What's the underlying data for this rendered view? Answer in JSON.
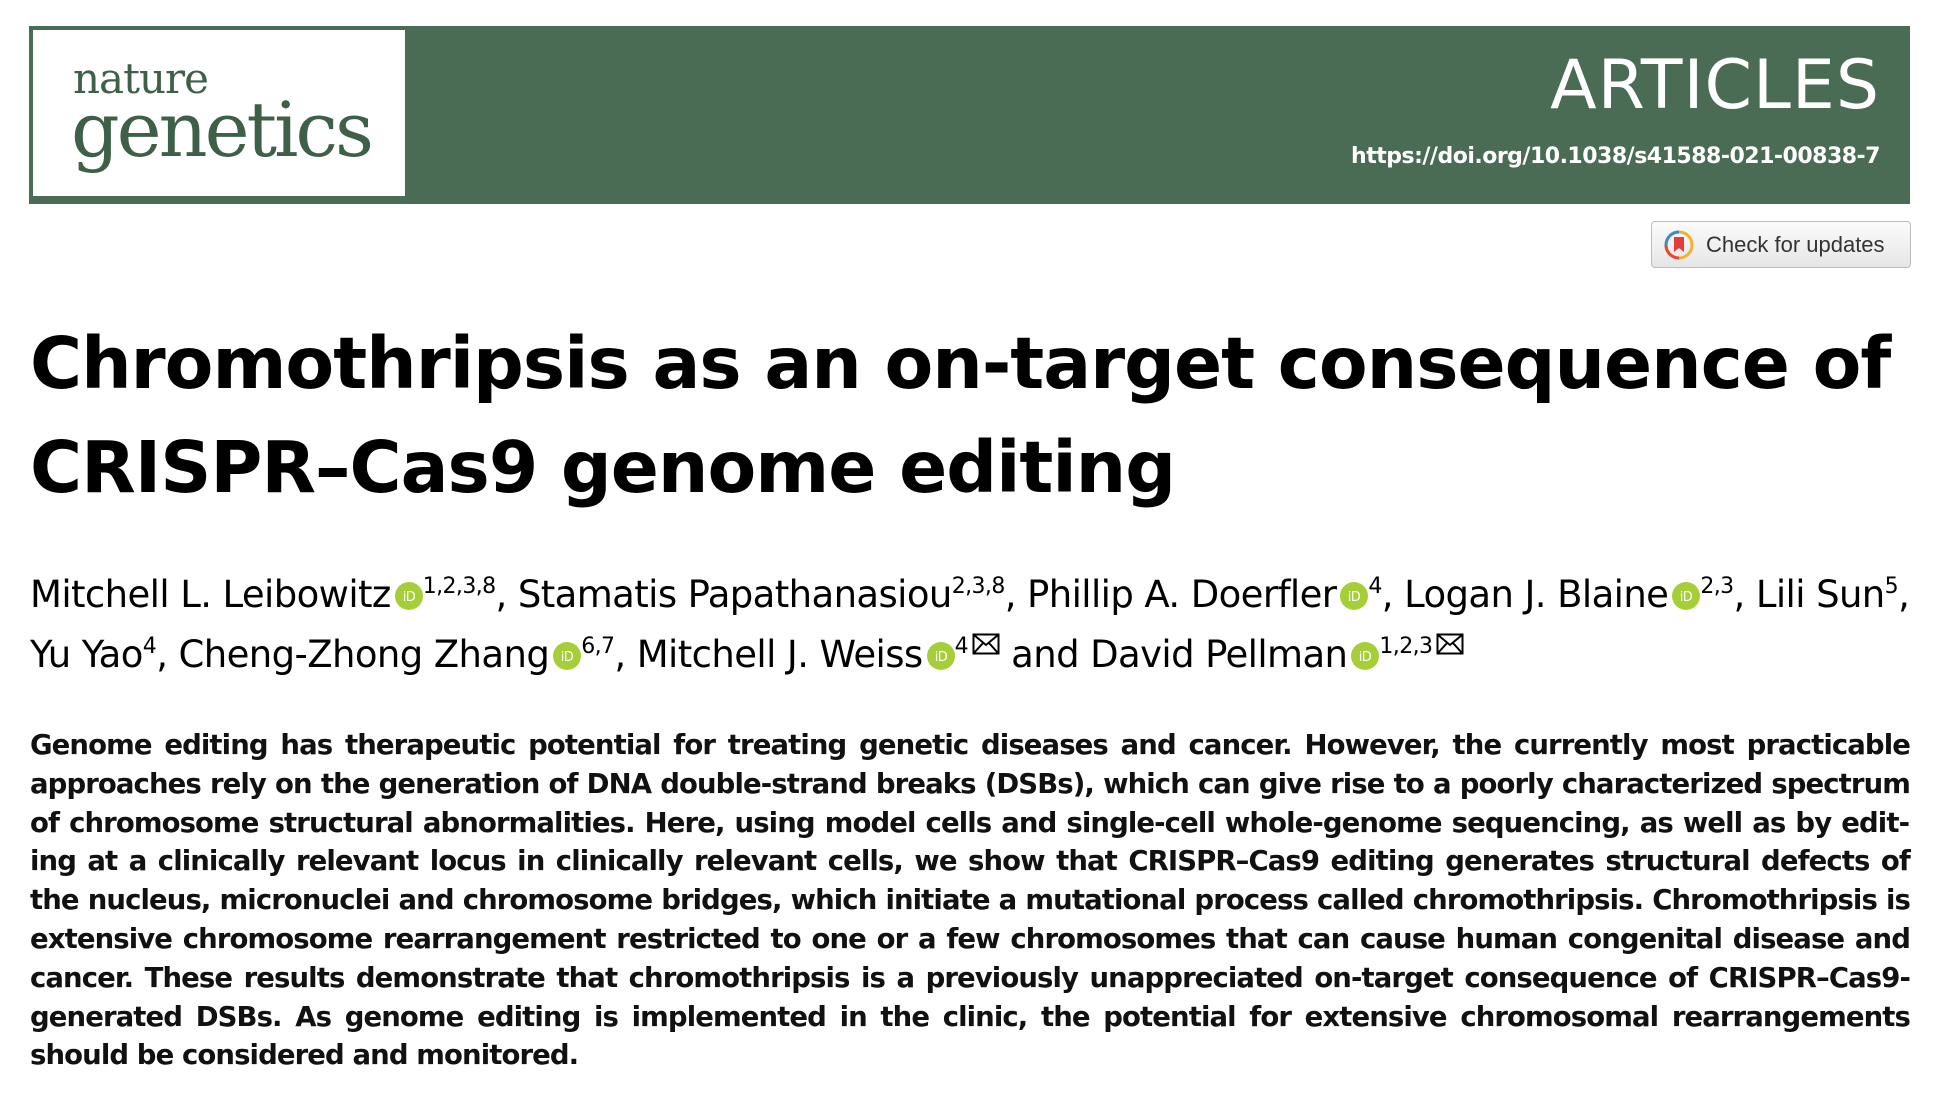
{
  "journal": {
    "name_line1": "nature",
    "name_line2": "genetics",
    "section": "ARTICLES",
    "doi": "https://doi.org/10.1038/s41588-021-00838-7",
    "brand_color": "#4a6b54"
  },
  "check_updates": {
    "label": "Check for updates",
    "icon": "crossmark-icon"
  },
  "article": {
    "title_line1": "Chromothripsis as an on-target consequence of",
    "title_line2": "CRISPR–Cas9 genome editing"
  },
  "authors": [
    {
      "name": "Mitchell L. Leibowitz",
      "orcid": true,
      "affiliations": "1,2,3,8",
      "corresponding": false,
      "sep": ", "
    },
    {
      "name": "Stamatis Papathanasiou",
      "orcid": false,
      "affiliations": "2,3,8",
      "corresponding": false,
      "sep": ", "
    },
    {
      "name": "Phillip A. Doerfler",
      "orcid": true,
      "affiliations": "4",
      "corresponding": false,
      "sep": ", "
    },
    {
      "name": "Logan J. Blaine",
      "orcid": true,
      "affiliations": "2,3",
      "corresponding": false,
      "sep": ", "
    },
    {
      "name": "Lili Sun",
      "orcid": false,
      "affiliations": "5",
      "corresponding": false,
      "sep": ", "
    },
    {
      "name": "Yu Yao",
      "orcid": false,
      "affiliations": "4",
      "corresponding": false,
      "sep": ", "
    },
    {
      "name": "Cheng-Zhong Zhang",
      "orcid": true,
      "affiliations": "6,7",
      "corresponding": false,
      "sep": ", "
    },
    {
      "name": "Mitchell J. Weiss",
      "orcid": true,
      "affiliations": "4",
      "corresponding": true,
      "sep": " and "
    },
    {
      "name": "David Pellman",
      "orcid": true,
      "affiliations": "1,2,3",
      "corresponding": true,
      "sep": ""
    }
  ],
  "abstract": "Genome editing has therapeutic potential for treating genetic diseases and cancer. However, the currently most practicable approaches rely on the generation of DNA double-strand breaks (DSBs), which can give rise to a poorly characterized spectrum of chromosome structural abnormalities. Here, using model cells and single-cell whole-genome sequencing, as well as by edit­ing at a clinically relevant locus in clinically relevant cells, we show that CRISPR–Cas9 editing generates structural defects of the nucleus, micronuclei and chromosome bridges, which initiate a mutational process called chromothripsis. Chromothripsis is extensive chromosome rearrangement restricted to one or a few chromosomes that can cause human congenital disease and cancer. These results demonstrate that chromothripsis is a previously unappreciated on-target consequence of CRISPR–Cas9-generated DSBs. As genome editing is implemented in the clinic, the potential for extensive chromosomal rearrange­ments should be considered and monitored.",
  "colors": {
    "orcid": "#a6ce39",
    "header_bg": "#4a6b54"
  }
}
